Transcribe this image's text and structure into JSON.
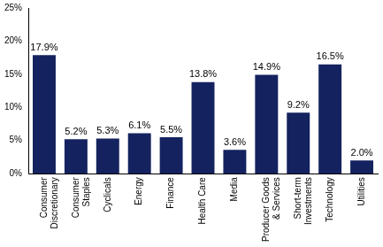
{
  "chart_data": {
    "type": "bar",
    "categories": [
      "Consumer Discretionary",
      "Consumer Staples",
      "Cyclicals",
      "Energy",
      "Finance",
      "Health Care",
      "Media",
      "Producer Goods & Services",
      "Short-term Investments",
      "Technology",
      "Utilities"
    ],
    "values": [
      17.9,
      5.2,
      5.3,
      6.1,
      5.5,
      13.8,
      3.6,
      14.9,
      9.2,
      16.5,
      2.0
    ],
    "value_labels": [
      "17.9%",
      "5.2%",
      "5.3%",
      "6.1%",
      "5.5%",
      "13.8%",
      "3.6%",
      "14.9%",
      "9.2%",
      "16.5%",
      "2.0%"
    ],
    "color": "#14235f",
    "ylim": [
      0,
      25
    ],
    "yticks": [
      {
        "value": 0,
        "label": "0%"
      },
      {
        "value": 5,
        "label": "5%"
      },
      {
        "value": 10,
        "label": "10%"
      },
      {
        "value": 15,
        "label": "15%"
      },
      {
        "value": 20,
        "label": "20%"
      },
      {
        "value": 25,
        "label": "25%"
      }
    ],
    "grid": false,
    "data_labels": true
  }
}
